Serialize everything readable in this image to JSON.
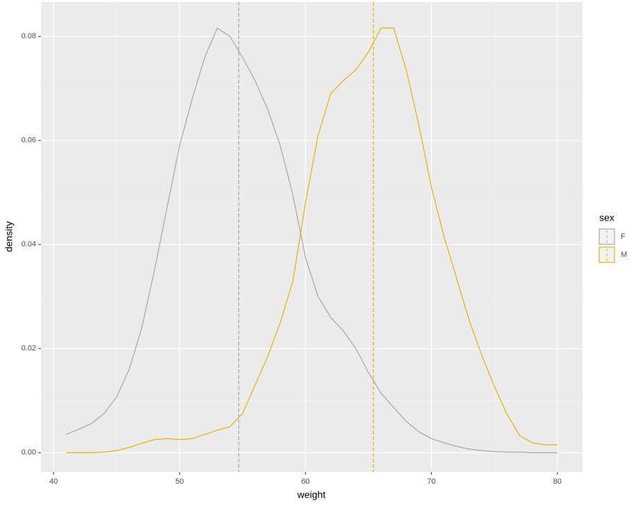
{
  "chart_data": {
    "type": "line",
    "x_label": "weight",
    "y_label": "density",
    "legend_title": "sex",
    "x": [
      41,
      42,
      43,
      44,
      45,
      46,
      47,
      48,
      49,
      50,
      51,
      52,
      53,
      54,
      55,
      56,
      57,
      58,
      59,
      60,
      61,
      62,
      63,
      64,
      65,
      66,
      67,
      68,
      69,
      70,
      71,
      72,
      73,
      74,
      75,
      76,
      77,
      78,
      79,
      80
    ],
    "series": [
      {
        "name": "F",
        "color": "#a6a6a6",
        "mean": 54.7,
        "values": [
          0.0035,
          0.0045,
          0.0056,
          0.0075,
          0.0107,
          0.016,
          0.024,
          0.035,
          0.047,
          0.059,
          0.068,
          0.076,
          0.0816,
          0.08,
          0.076,
          0.0715,
          0.066,
          0.059,
          0.0495,
          0.0375,
          0.03,
          0.026,
          0.0234,
          0.02,
          0.0154,
          0.0114,
          0.0087,
          0.006,
          0.004,
          0.0027,
          0.0019,
          0.0012,
          0.0007,
          0.0004,
          0.0002,
          0.0001,
          0.0001,
          0,
          0,
          0
        ]
      },
      {
        "name": "M",
        "color": "#e7b000",
        "mean": 65.4,
        "values": [
          0,
          0,
          0,
          0.0001,
          0.0004,
          0.001,
          0.0018,
          0.0025,
          0.0027,
          0.0025,
          0.0027,
          0.0035,
          0.0043,
          0.005,
          0.0075,
          0.013,
          0.0185,
          0.025,
          0.033,
          0.048,
          0.061,
          0.069,
          0.0715,
          0.0736,
          0.077,
          0.0816,
          0.0816,
          0.0736,
          0.063,
          0.051,
          0.0415,
          0.0335,
          0.0254,
          0.0187,
          0.0127,
          0.0074,
          0.0033,
          0.0019,
          0.0015,
          0.0015
        ]
      }
    ],
    "xlim": [
      39,
      82
    ],
    "xticks": [
      40,
      50,
      60,
      70,
      80
    ],
    "ylim": [
      -0.0037,
      0.0866
    ],
    "yticks": [
      {
        "value": 0,
        "label": "0.00"
      },
      0.02,
      0.04,
      0.06,
      0.08
    ],
    "grid": true,
    "legend": "right"
  }
}
